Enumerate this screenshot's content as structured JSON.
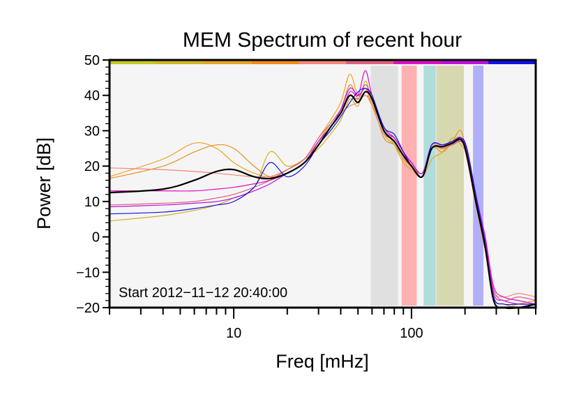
{
  "chart_data": {
    "type": "line",
    "title": "MEM Spectrum of recent hour",
    "xlabel": "Freq [mHz]",
    "ylabel": "Power [dB]",
    "xscale": "log",
    "xlim": [
      2,
      500
    ],
    "ylim": [
      -20,
      50
    ],
    "grid": false,
    "annotation": "Start 2012−11−12 20:40:00",
    "x_tick_labels": [
      {
        "value": 10,
        "label": "10"
      },
      {
        "value": 100,
        "label": "100"
      }
    ],
    "y_tick_labels": [
      {
        "value": 50,
        "label": "50"
      },
      {
        "value": 40,
        "label": "40"
      },
      {
        "value": 30,
        "label": "30"
      },
      {
        "value": 20,
        "label": "20"
      },
      {
        "value": 10,
        "label": "10"
      },
      {
        "value": 0,
        "label": "0"
      },
      {
        "value": -10,
        "label": "−10"
      },
      {
        "value": -20,
        "label": "−20"
      }
    ],
    "top_color_bar": [
      "#c2c820",
      "#d4b424",
      "#e4a424",
      "#f08c18",
      "#f08878",
      "#d86080",
      "#e010c0",
      "#c010e0",
      "#1010f0"
    ],
    "bands": [
      {
        "from": 59,
        "to": 84,
        "color": "#e0e0e0"
      },
      {
        "from": 88,
        "to": 107,
        "color": "#ffb0b0"
      },
      {
        "from": 117,
        "to": 137,
        "color": "#b0dcdc"
      },
      {
        "from": 138,
        "to": 197,
        "color": "#d8d8b0"
      },
      {
        "from": 222,
        "to": 254,
        "color": "#b0b0f8"
      }
    ],
    "x": [
      2,
      4,
      6,
      8,
      10,
      13,
      16,
      20,
      25,
      30,
      35,
      40,
      45,
      50,
      55,
      60,
      70,
      80,
      90,
      100,
      115,
      130,
      150,
      170,
      190,
      205,
      230,
      260,
      290,
      330,
      400,
      500
    ],
    "series": [
      {
        "color": "#f0a020",
        "values": [
          17,
          22,
          26.5,
          25,
          21,
          18,
          17,
          19,
          22,
          28,
          33,
          38,
          46,
          40,
          42,
          37,
          29,
          26,
          23,
          21,
          18,
          26,
          25,
          27,
          28,
          22,
          9,
          -4,
          -18,
          -20,
          -19,
          -18
        ]
      },
      {
        "color": "#e89020",
        "values": [
          16.5,
          20,
          24,
          26,
          25,
          20,
          17,
          18,
          21,
          27,
          32,
          36,
          43,
          39,
          40,
          38,
          28,
          26,
          22,
          20,
          17,
          25,
          24,
          27,
          30,
          22,
          10,
          -2,
          -17,
          -19,
          -20,
          -20
        ]
      },
      {
        "color": "#d4b020",
        "values": [
          4.5,
          6,
          7.5,
          9,
          11,
          14,
          24,
          20,
          22,
          25,
          29,
          33,
          39,
          37,
          44,
          38,
          31,
          26,
          21,
          19,
          17,
          22,
          24,
          28,
          26,
          23,
          11,
          -3,
          -18,
          -20,
          -20,
          -19
        ]
      },
      {
        "color": "#f08878",
        "values": [
          19.5,
          19,
          18.5,
          18,
          17.5,
          17,
          17,
          19,
          22,
          27,
          31,
          35,
          37,
          38,
          40,
          37,
          29,
          28,
          24,
          21,
          18,
          25,
          26,
          26,
          27,
          24,
          11,
          -1,
          -15,
          -17,
          -16,
          -17
        ]
      },
      {
        "color": "#d86080",
        "values": [
          9,
          9.5,
          10,
          11,
          12,
          14,
          16,
          19,
          22,
          28,
          32,
          36,
          40,
          39,
          43,
          39,
          30,
          27,
          23,
          21,
          17,
          25,
          25,
          26,
          27,
          24,
          12,
          -2,
          -15,
          -18,
          -17,
          -18
        ]
      },
      {
        "color": "#e010c0",
        "values": [
          13,
          13,
          13,
          13.5,
          14,
          15,
          16,
          18,
          21,
          27,
          31,
          35,
          41,
          40,
          47,
          40,
          31,
          28,
          24,
          21,
          18,
          26,
          26,
          27,
          27,
          25,
          12,
          0,
          -14,
          -17,
          -18,
          -19
        ]
      },
      {
        "color": "#c010e0",
        "values": [
          8.5,
          9,
          9.5,
          10,
          11,
          13,
          15,
          18,
          21,
          27,
          31,
          36,
          42,
          40,
          42,
          39,
          30,
          28,
          24,
          21,
          18,
          26,
          26,
          27,
          28,
          24,
          11,
          -1,
          -16,
          -18,
          -19,
          -19
        ]
      },
      {
        "color": "#1010f0",
        "values": [
          6.5,
          7,
          8,
          9,
          10,
          14,
          21,
          17,
          20,
          26,
          30,
          34,
          38,
          41,
          42,
          40,
          31,
          29,
          24,
          20,
          17,
          26,
          26,
          27,
          28,
          25,
          12,
          -2,
          -17,
          -19,
          -19,
          -19
        ]
      },
      {
        "color": "#000000",
        "values": [
          12.5,
          13.5,
          16,
          18.5,
          19,
          17,
          16.5,
          18,
          21,
          26,
          31,
          35,
          40,
          38,
          41,
          39,
          30,
          27,
          23,
          20,
          17,
          25,
          25.5,
          26.5,
          27.5,
          23,
          10,
          -3,
          -18,
          -20,
          -20,
          -19
        ]
      }
    ]
  }
}
